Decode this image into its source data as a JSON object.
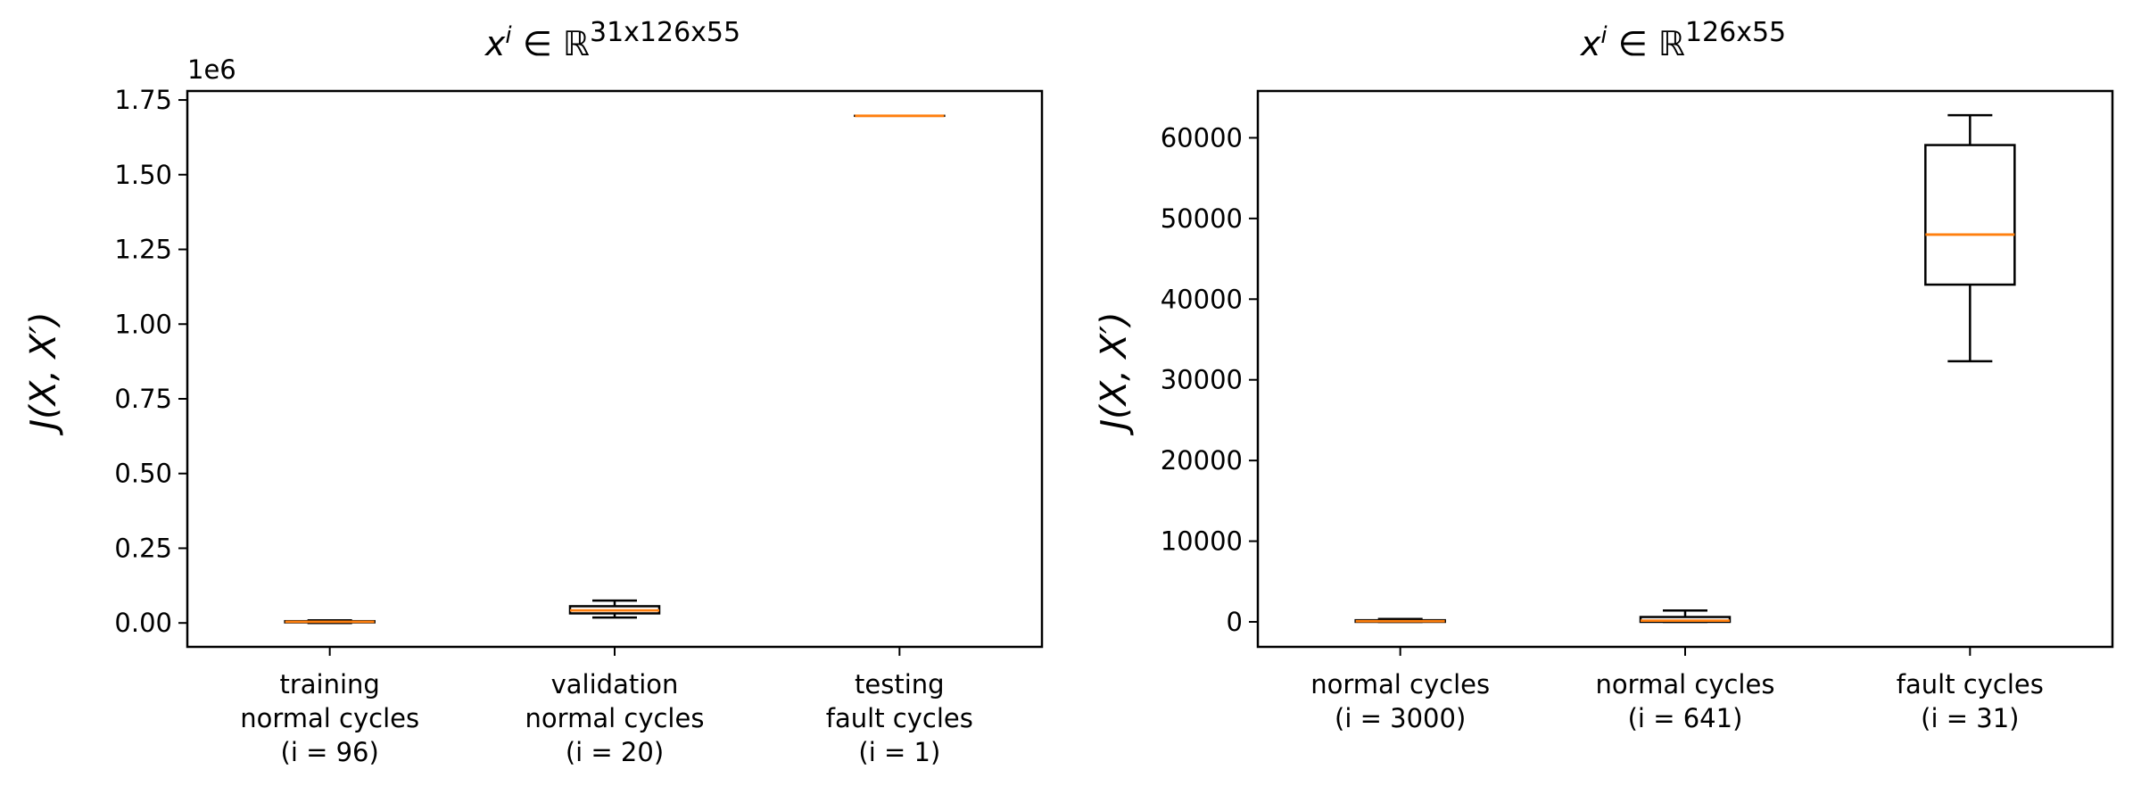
{
  "chart_data": [
    {
      "type": "box",
      "title": "x^i ∈ ℝ^{31x126x55}",
      "title_parts": {
        "base": "x",
        "sup": "i",
        "in": " ∈ ℝ",
        "dims": "31x126x55"
      },
      "ylabel": "J(X, X′)",
      "y_offset_label": "1e6",
      "ylim": [
        -80000,
        1780000
      ],
      "yticks": [
        0,
        250000,
        500000,
        750000,
        1000000,
        1250000,
        1500000,
        1750000
      ],
      "ytick_labels": [
        "0.00",
        "0.25",
        "0.50",
        "0.75",
        "1.00",
        "1.25",
        "1.50",
        "1.75"
      ],
      "categories": [
        [
          "training",
          "normal cycles",
          "(i = 96)"
        ],
        [
          "validation",
          "normal cycles",
          "(i = 20)"
        ],
        [
          "testing",
          "fault cycles",
          "(i = 1)"
        ]
      ],
      "boxes": [
        {
          "whislo": 0,
          "q1": 2000,
          "med": 4000,
          "q3": 6000,
          "whishi": 9000
        },
        {
          "whislo": 18000,
          "q1": 32000,
          "med": 42000,
          "q3": 56000,
          "whishi": 75000
        },
        {
          "whislo": 1697000,
          "q1": 1697000,
          "med": 1697000,
          "q3": 1697000,
          "whishi": 1697000
        }
      ]
    },
    {
      "type": "box",
      "title": "x^i ∈ ℝ^{126x55}",
      "title_parts": {
        "base": "x",
        "sup": "i",
        "in": " ∈ ℝ",
        "dims": "126x55"
      },
      "ylabel": "J(X, X′)",
      "ylim": [
        -3100,
        65800
      ],
      "yticks": [
        0,
        10000,
        20000,
        30000,
        40000,
        50000,
        60000
      ],
      "ytick_labels": [
        "0",
        "10000",
        "20000",
        "30000",
        "40000",
        "50000",
        "60000"
      ],
      "categories": [
        [
          "normal cycles",
          "(i = 3000)"
        ],
        [
          "normal cycles",
          "(i = 641)"
        ],
        [
          "fault cycles",
          "(i = 31)"
        ]
      ],
      "boxes": [
        {
          "whislo": 0,
          "q1": 0,
          "med": 80,
          "q3": 200,
          "whishi": 350
        },
        {
          "whislo": 0,
          "q1": 0,
          "med": 150,
          "q3": 600,
          "whishi": 1400
        },
        {
          "whislo": 32300,
          "q1": 41800,
          "med": 48000,
          "q3": 59100,
          "whishi": 62800
        }
      ]
    }
  ],
  "colors": {
    "box": "#000000",
    "median": "#ff7f0e",
    "axis": "#000000"
  }
}
